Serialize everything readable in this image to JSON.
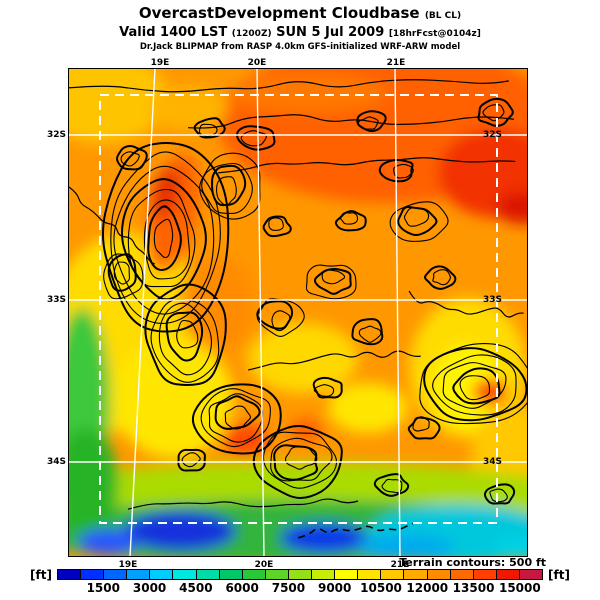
{
  "header": {
    "title_main": "OvercastDevelopment Cloudbase",
    "title_suffix": "(BL CL)",
    "valid_prefix": "Valid 1400 LST",
    "valid_zulu": "(1200Z)",
    "valid_date": "SUN 5 Jul 2009",
    "valid_fcst": "[18hrFcst@0104z]",
    "model_line": "Dr.Jack BLIPMAP from RASP 4.0km GFS-initialized WRF-ARW model"
  },
  "map": {
    "lon_labels_top": [
      "19E",
      "20E",
      "21E"
    ],
    "lon_labels_bottom": [
      "19E",
      "20E",
      "21E"
    ],
    "lat_labels_left": [
      "32S",
      "33S",
      "34S"
    ],
    "lat_labels_right": [
      "32S",
      "33S",
      "34S"
    ],
    "terrain_note": "Terrain contours: 500 ft"
  },
  "colorbar": {
    "unit_left": "[ft]",
    "unit_right": "[ft]",
    "ticks": [
      "1500",
      "3000",
      "4500",
      "6000",
      "7500",
      "9000",
      "10500",
      "12000",
      "13500",
      "15000"
    ],
    "colors": [
      "#0000C0",
      "#0030FF",
      "#0068FF",
      "#00A0FF",
      "#00CCFF",
      "#00E8E0",
      "#00DCA8",
      "#00C868",
      "#28C838",
      "#5CD428",
      "#94E018",
      "#C8EC08",
      "#FFFF00",
      "#FFE400",
      "#FFC800",
      "#FFAA00",
      "#FF8C00",
      "#FF6A00",
      "#FF4000",
      "#F01800",
      "#C81840"
    ]
  }
}
